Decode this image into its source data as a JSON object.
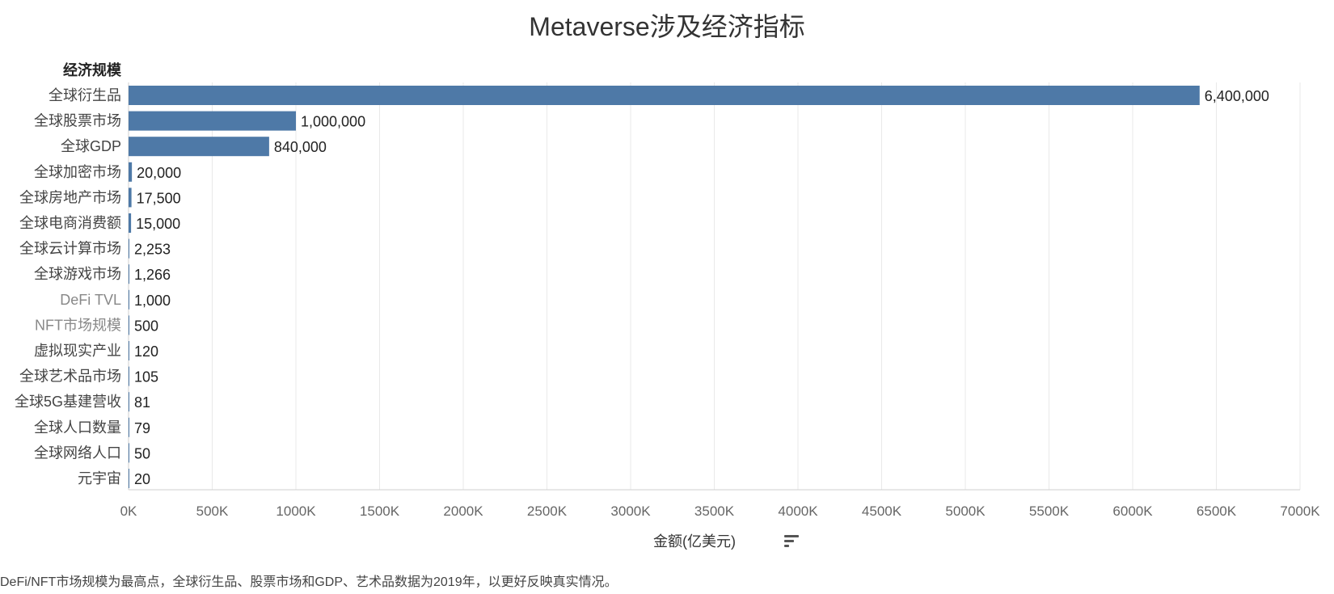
{
  "chart_data": {
    "type": "bar",
    "orientation": "horizontal",
    "title": "Metaverse涉及经济指标",
    "row_header": "经济规模",
    "xlabel": "金额(亿美元)",
    "categories": [
      "全球衍生品",
      "全球股票市场",
      "全球GDP",
      "全球加密市场",
      "全球房地产市场",
      "全球电商消费额",
      "全球云计算市场",
      "全球游戏市场",
      "DeFi TVL",
      "NFT市场规模",
      "虚拟现实产业",
      "全球艺术品市场",
      "全球5G基建营收",
      "全球人口数量",
      "全球网络人口",
      "元宇宙"
    ],
    "values": [
      6400000,
      1000000,
      840000,
      20000,
      17500,
      15000,
      2253,
      1266,
      1000,
      500,
      120,
      105,
      81,
      79,
      50,
      20
    ],
    "value_labels": [
      "6,400,000",
      "1,000,000",
      "840,000",
      "20,000",
      "17,500",
      "15,000",
      "2,253",
      "1,266",
      "1,000",
      "500",
      "120",
      "105",
      "81",
      "79",
      "50",
      "20"
    ],
    "grey_categories": [
      "DeFi TVL",
      "NFT市场规模"
    ],
    "xlim": [
      0,
      7000000
    ],
    "xticks": [
      0,
      500000,
      1000000,
      1500000,
      2000000,
      2500000,
      3000000,
      3500000,
      4000000,
      4500000,
      5000000,
      5500000,
      6000000,
      6500000,
      7000000
    ],
    "xtick_labels": [
      "0K",
      "500K",
      "1000K",
      "1500K",
      "2000K",
      "2500K",
      "3000K",
      "3500K",
      "4000K",
      "4500K",
      "5000K",
      "5500K",
      "6000K",
      "6500K",
      "7000K"
    ],
    "grid": true,
    "bar_color": "#4e79a7"
  },
  "footnote": "DeFi/NFT市场规模为最高点，全球衍生品、股票市场和GDP、艺术品数据为2019年，以更好反映真实情况。",
  "sort_icon": "sort-descending-icon"
}
